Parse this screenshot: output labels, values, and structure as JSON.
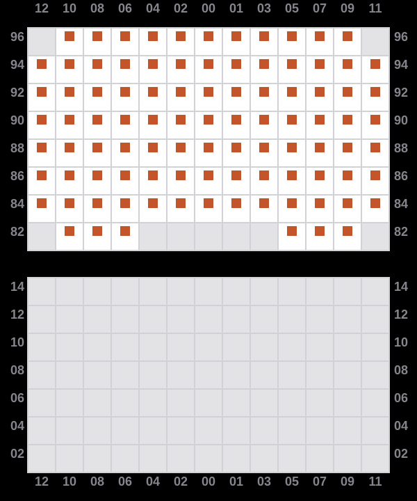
{
  "colors": {
    "background": "#000000",
    "marker": "#c4552a",
    "cell_available": "#ffffff",
    "cell_unavailable": "#e3e3e5",
    "grid_line": "#d2d2d6",
    "label_text": "#85858e"
  },
  "chart_data": [
    {
      "type": "heatmap",
      "title": "",
      "x_labels": [
        "12",
        "10",
        "08",
        "06",
        "04",
        "02",
        "00",
        "01",
        "03",
        "05",
        "07",
        "09",
        "11"
      ],
      "x_axis_position": "top",
      "y_labels": [
        "96",
        "94",
        "92",
        "90",
        "88",
        "86",
        "84",
        "82"
      ],
      "y_axis_position": "both-sides",
      "grid": true,
      "legend": false,
      "cell_states": {
        "1": "available-marker",
        "0": "unavailable-gray"
      },
      "values": [
        [
          0,
          1,
          1,
          1,
          1,
          1,
          1,
          1,
          1,
          1,
          1,
          1,
          0
        ],
        [
          1,
          1,
          1,
          1,
          1,
          1,
          1,
          1,
          1,
          1,
          1,
          1,
          1
        ],
        [
          1,
          1,
          1,
          1,
          1,
          1,
          1,
          1,
          1,
          1,
          1,
          1,
          1
        ],
        [
          1,
          1,
          1,
          1,
          1,
          1,
          1,
          1,
          1,
          1,
          1,
          1,
          1
        ],
        [
          1,
          1,
          1,
          1,
          1,
          1,
          1,
          1,
          1,
          1,
          1,
          1,
          1
        ],
        [
          1,
          1,
          1,
          1,
          1,
          1,
          1,
          1,
          1,
          1,
          1,
          1,
          1
        ],
        [
          1,
          1,
          1,
          1,
          1,
          1,
          1,
          1,
          1,
          1,
          1,
          1,
          1
        ],
        [
          0,
          1,
          1,
          1,
          0,
          0,
          0,
          0,
          0,
          1,
          1,
          1,
          0
        ]
      ]
    },
    {
      "type": "heatmap",
      "title": "",
      "x_labels": [
        "12",
        "10",
        "08",
        "06",
        "04",
        "02",
        "00",
        "01",
        "03",
        "05",
        "07",
        "09",
        "11"
      ],
      "x_axis_position": "bottom",
      "y_labels": [
        "14",
        "12",
        "10",
        "08",
        "06",
        "04",
        "02"
      ],
      "y_axis_position": "both-sides",
      "grid": true,
      "legend": false,
      "cell_states": {
        "1": "available-marker",
        "0": "unavailable-gray"
      },
      "values": [
        [
          0,
          0,
          0,
          0,
          0,
          0,
          0,
          0,
          0,
          0,
          0,
          0,
          0
        ],
        [
          0,
          0,
          0,
          0,
          0,
          0,
          0,
          0,
          0,
          0,
          0,
          0,
          0
        ],
        [
          0,
          0,
          0,
          0,
          0,
          0,
          0,
          0,
          0,
          0,
          0,
          0,
          0
        ],
        [
          0,
          0,
          0,
          0,
          0,
          0,
          0,
          0,
          0,
          0,
          0,
          0,
          0
        ],
        [
          0,
          0,
          0,
          0,
          0,
          0,
          0,
          0,
          0,
          0,
          0,
          0,
          0
        ],
        [
          0,
          0,
          0,
          0,
          0,
          0,
          0,
          0,
          0,
          0,
          0,
          0,
          0
        ],
        [
          0,
          0,
          0,
          0,
          0,
          0,
          0,
          0,
          0,
          0,
          0,
          0,
          0
        ]
      ]
    }
  ]
}
